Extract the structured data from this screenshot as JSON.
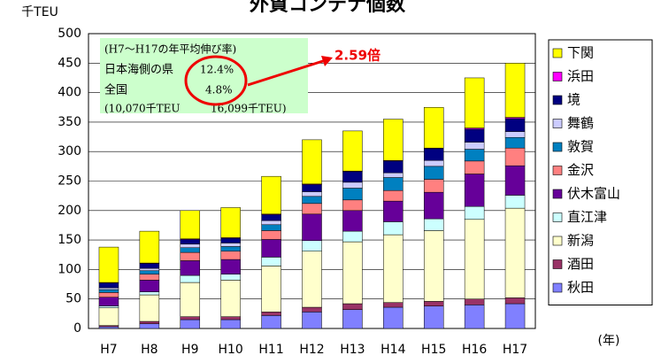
{
  "chart_data": {
    "type": "stacked_bar",
    "title": "外貿コンテナ個数",
    "y_label": "千TEU",
    "x_label": "(年)",
    "categories": [
      "H7",
      "H8",
      "H9",
      "H10",
      "H11",
      "H12",
      "H13",
      "H14",
      "H15",
      "H16",
      "H17"
    ],
    "series": [
      {
        "name": "秋田",
        "color": "#8080ff",
        "values": [
          3,
          8,
          15,
          15,
          22,
          28,
          32,
          36,
          38,
          40,
          42
        ]
      },
      {
        "name": "酒田",
        "color": "#993366",
        "values": [
          2,
          4,
          5,
          5,
          6,
          8,
          10,
          8,
          8,
          10,
          10
        ]
      },
      {
        "name": "新潟",
        "color": "#ffffcc",
        "values": [
          30,
          45,
          58,
          62,
          78,
          95,
          105,
          115,
          120,
          135,
          152
        ]
      },
      {
        "name": "直江津",
        "color": "#ccffff",
        "values": [
          3,
          5,
          12,
          10,
          15,
          18,
          18,
          22,
          20,
          22,
          22
        ]
      },
      {
        "name": "伏木富山",
        "color": "#660099",
        "values": [
          15,
          20,
          25,
          25,
          30,
          45,
          35,
          35,
          45,
          55,
          50
        ]
      },
      {
        "name": "金沢",
        "color": "#ff8080",
        "values": [
          8,
          10,
          14,
          14,
          15,
          18,
          18,
          18,
          22,
          22,
          30
        ]
      },
      {
        "name": "敦賀",
        "color": "#0080c0",
        "values": [
          5,
          6,
          8,
          8,
          10,
          12,
          20,
          22,
          22,
          20,
          18
        ]
      },
      {
        "name": "舞鶴",
        "color": "#ccccff",
        "values": [
          3,
          4,
          6,
          6,
          7,
          8,
          10,
          8,
          10,
          12,
          10
        ]
      },
      {
        "name": "境",
        "color": "#000080",
        "values": [
          8,
          8,
          8,
          8,
          10,
          12,
          18,
          20,
          20,
          22,
          22
        ]
      },
      {
        "name": "浜田",
        "color": "#ff00ff",
        "values": [
          1,
          1,
          1,
          1,
          1,
          1,
          1,
          1,
          1,
          2,
          2
        ]
      },
      {
        "name": "下関",
        "color": "#ffff00",
        "values": [
          60,
          54,
          48,
          51,
          64,
          75,
          68,
          70,
          69,
          85,
          92
        ]
      }
    ],
    "ylim": [
      0,
      500
    ],
    "yticks": [
      0,
      50,
      100,
      150,
      200,
      250,
      300,
      350,
      400,
      450,
      500
    ],
    "grid": true,
    "annotation": {
      "heading": "(H7～H17の年平均伸び率)",
      "row1_label": "日本海側の県",
      "row1_value": "12.4%",
      "row2_label": "全国",
      "row2_value": "4.8%",
      "note_left": "(10,070千TEU",
      "note_right": "16,099千TEU)",
      "ratio": "2.59倍"
    }
  }
}
